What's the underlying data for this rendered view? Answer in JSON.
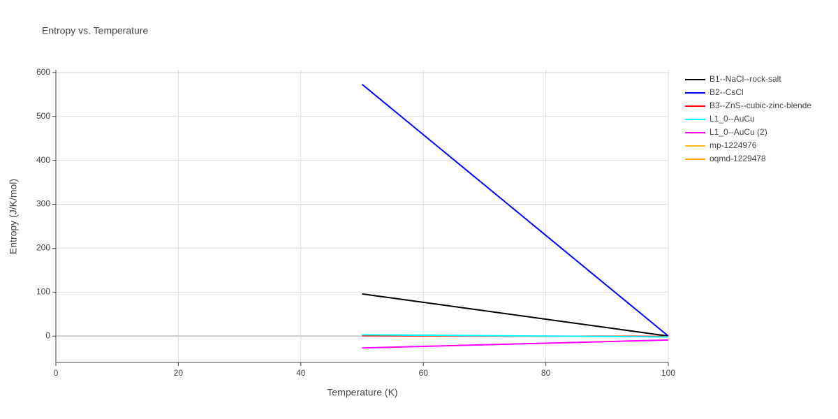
{
  "chart_data": {
    "type": "line",
    "title": "Entropy vs. Temperature",
    "x_label": "Temperature (K)",
    "y_label": "Entropy (J/K/mol)",
    "x": [
      50,
      100
    ],
    "series": [
      {
        "name": "B1--NaCl--rock-salt",
        "color": "#000000",
        "values": [
          96,
          0
        ]
      },
      {
        "name": "B2--CsCl",
        "color": "#0000ff",
        "values": [
          573,
          0
        ]
      },
      {
        "name": "B3--ZnS--cubic-zinc-blende",
        "color": "#ff0000",
        "values": [
          1,
          -1
        ]
      },
      {
        "name": "L1_0--AuCu",
        "color": "#00ffff",
        "values": [
          3,
          -2
        ]
      },
      {
        "name": "L1_0--AuCu (2)",
        "color": "#ff00ff",
        "values": [
          -27,
          -9
        ]
      },
      {
        "name": "mp-1224976",
        "color": "#fbbc1e",
        "values": [
          null,
          null
        ]
      },
      {
        "name": "oqmd-1229478",
        "color": "#ffa500",
        "values": [
          null,
          null
        ]
      }
    ],
    "xlim": [
      0,
      100
    ],
    "xticks": [
      0,
      20,
      40,
      60,
      80,
      100
    ],
    "ylim": [
      -60,
      606
    ],
    "yticks": [
      0,
      100,
      200,
      300,
      400,
      500,
      600
    ],
    "grid": true
  }
}
